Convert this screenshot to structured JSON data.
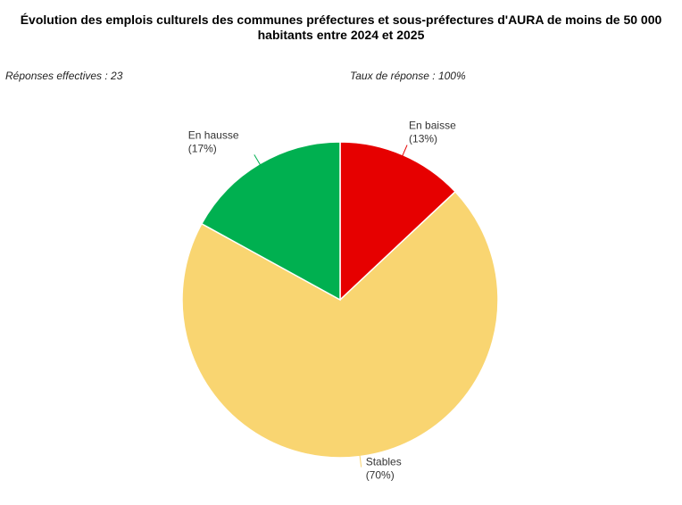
{
  "chart_data": {
    "type": "pie",
    "title": "Évolution des emplois culturels des communes préfectures et sous-préfectures d'AURA de moins de 50 000 habitants entre 2024 et 2025",
    "annotations": [
      "Réponses effectives : 23",
      "Taux de réponse : 100%"
    ],
    "categories": [
      "En baisse",
      "Stables",
      "En hausse"
    ],
    "values": [
      13,
      70,
      17
    ],
    "value_labels": [
      "(13%)",
      "(70%)",
      "(17%)"
    ],
    "colors": [
      "#e60000",
      "#f9d571",
      "#00b050"
    ]
  }
}
